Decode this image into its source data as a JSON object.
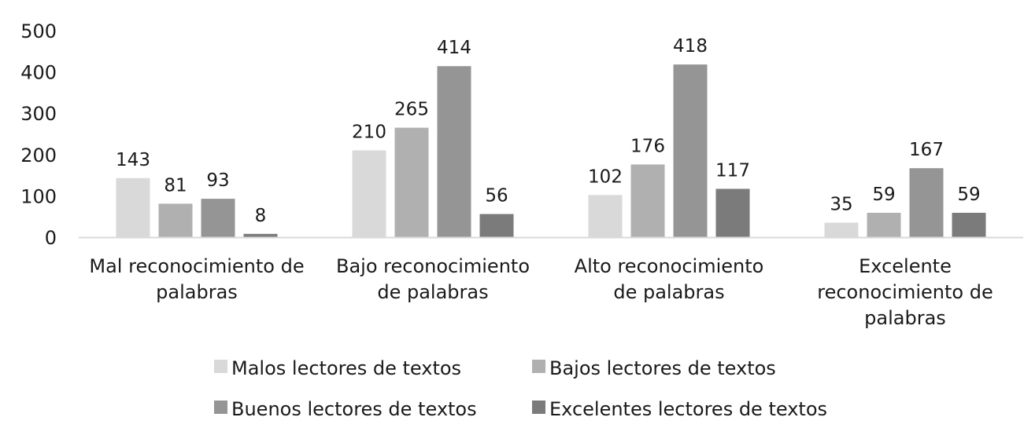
{
  "chart_data": {
    "type": "bar",
    "title": "",
    "xlabel": "",
    "ylabel": "",
    "ylim": [
      0,
      500
    ],
    "yticks": [
      0,
      100,
      200,
      300,
      400,
      500
    ],
    "grid": false,
    "legend_position": "bottom",
    "categories": [
      [
        "Mal reconocimiento de",
        "palabras"
      ],
      [
        "Bajo reconocimiento",
        "de palabras"
      ],
      [
        "Alto reconocimiento",
        "de palabras"
      ],
      [
        "Excelente",
        "reconocimiento de",
        "palabras"
      ]
    ],
    "series": [
      {
        "name": "Malos lectores de textos",
        "color": "#d9d9d9",
        "values": [
          143,
          210,
          102,
          35
        ]
      },
      {
        "name": "Bajos lectores de textos",
        "color": "#b0b0b0",
        "values": [
          81,
          265,
          176,
          59
        ]
      },
      {
        "name": "Buenos lectores de textos",
        "color": "#959595",
        "values": [
          93,
          414,
          418,
          167
        ]
      },
      {
        "name": "Excelentes lectores de textos",
        "color": "#7b7b7b",
        "values": [
          8,
          56,
          117,
          59
        ]
      }
    ]
  }
}
